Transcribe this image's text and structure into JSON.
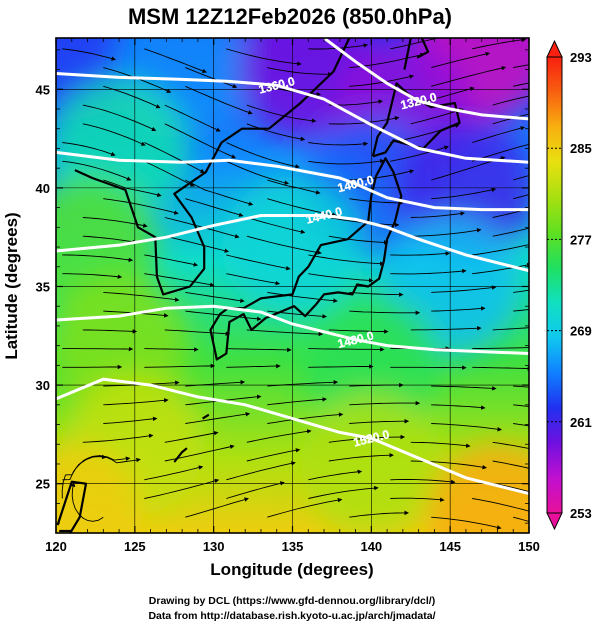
{
  "chart_data": {
    "type": "heatmap",
    "title": "MSM 12Z12Feb2026 (850.0hPa)",
    "xlabel": "Longitude (degrees)",
    "ylabel": "Latitude  (degrees)",
    "xlim": [
      120,
      150
    ],
    "ylim": [
      22.5,
      47.6
    ],
    "x_ticks": [
      120,
      125,
      130,
      135,
      140,
      145,
      150
    ],
    "y_ticks": [
      25,
      30,
      35,
      40,
      45
    ],
    "grid": true,
    "grid_x": [
      125,
      130,
      135,
      140,
      145
    ],
    "grid_y": [
      25,
      30,
      35,
      40,
      45
    ],
    "colorbar": {
      "ticks": [
        293,
        285,
        277,
        269,
        261,
        253
      ],
      "min": 253,
      "max": 293,
      "stops": [
        "#e8109a",
        "#c010d0",
        "#7010e0",
        "#2030f0",
        "#1080ff",
        "#10c8f0",
        "#10e0c0",
        "#20e060",
        "#60e020",
        "#a8e010",
        "#e8e010",
        "#f8b010",
        "#f86010",
        "#f82010"
      ],
      "placement": "right"
    },
    "temperature_samples_K": [
      {
        "lon": 121,
        "lat": 47,
        "value": 263
      },
      {
        "lon": 128,
        "lat": 46,
        "value": 266
      },
      {
        "lon": 136,
        "lat": 46,
        "value": 259
      },
      {
        "lon": 147,
        "lat": 47,
        "value": 255
      },
      {
        "lon": 142,
        "lat": 44,
        "value": 258
      },
      {
        "lon": 124,
        "lat": 42,
        "value": 272
      },
      {
        "lon": 140,
        "lat": 40,
        "value": 264
      },
      {
        "lon": 146,
        "lat": 40,
        "value": 261
      },
      {
        "lon": 122,
        "lat": 37,
        "value": 277
      },
      {
        "lon": 135,
        "lat": 37,
        "value": 270
      },
      {
        "lon": 145,
        "lat": 35,
        "value": 268
      },
      {
        "lon": 124,
        "lat": 32,
        "value": 279
      },
      {
        "lon": 140,
        "lat": 31,
        "value": 275
      },
      {
        "lon": 125,
        "lat": 27,
        "value": 282
      },
      {
        "lon": 140,
        "lat": 26,
        "value": 281
      },
      {
        "lon": 121,
        "lat": 23.5,
        "value": 285
      },
      {
        "lon": 148,
        "lat": 23.5,
        "value": 287
      }
    ],
    "contours": [
      {
        "label": "1320.0",
        "label_lon": 143,
        "label_lat": 44.4,
        "points": [
          [
            137,
            47.6
          ],
          [
            139,
            46.4
          ],
          [
            141,
            45.3
          ],
          [
            143,
            44.4
          ],
          [
            145,
            44.0
          ],
          [
            147,
            43.7
          ],
          [
            150,
            43.5
          ]
        ]
      },
      {
        "label": "1360.0",
        "label_lon": 134,
        "label_lat": 45.2,
        "points": [
          [
            120,
            45.8
          ],
          [
            124,
            45.6
          ],
          [
            128,
            45.5
          ],
          [
            131,
            45.4
          ],
          [
            134,
            45.2
          ],
          [
            137,
            44.5
          ],
          [
            140,
            43.2
          ],
          [
            143,
            42.0
          ],
          [
            146,
            41.5
          ],
          [
            150,
            41.3
          ]
        ]
      },
      {
        "label": "1400.0",
        "label_lon": 139,
        "label_lat": 40.2,
        "points": [
          [
            120,
            41.8
          ],
          [
            124,
            41.4
          ],
          [
            128,
            41.3
          ],
          [
            131,
            41.4
          ],
          [
            134,
            41.1
          ],
          [
            136,
            40.8
          ],
          [
            138,
            40.5
          ],
          [
            139,
            40.2
          ],
          [
            141,
            39.5
          ],
          [
            144,
            39.0
          ],
          [
            147,
            38.9
          ],
          [
            150,
            38.9
          ]
        ]
      },
      {
        "label": "1440.0",
        "label_lon": 137,
        "label_lat": 38.6,
        "points": [
          [
            120,
            36.8
          ],
          [
            124,
            37.1
          ],
          [
            127,
            37.5
          ],
          [
            130,
            38.1
          ],
          [
            133,
            38.6
          ],
          [
            137,
            38.6
          ],
          [
            139,
            38.4
          ],
          [
            141,
            38.0
          ],
          [
            143,
            37.4
          ],
          [
            146,
            36.6
          ],
          [
            150,
            35.8
          ]
        ]
      },
      {
        "label": "1480.0",
        "label_lon": 139,
        "label_lat": 32.3,
        "points": [
          [
            120,
            33.3
          ],
          [
            124,
            33.5
          ],
          [
            127,
            33.9
          ],
          [
            130,
            34.0
          ],
          [
            133,
            33.7
          ],
          [
            135,
            33.1
          ],
          [
            137,
            32.7
          ],
          [
            139,
            32.3
          ],
          [
            141,
            32.0
          ],
          [
            144,
            31.8
          ],
          [
            147,
            31.7
          ],
          [
            150,
            31.6
          ]
        ]
      },
      {
        "label": "1520.0",
        "label_lon": 140,
        "label_lat": 27.3,
        "points": [
          [
            120,
            29.3
          ],
          [
            123,
            30.3
          ],
          [
            126,
            30.0
          ],
          [
            129,
            29.4
          ],
          [
            132,
            29.0
          ],
          [
            135,
            28.3
          ],
          [
            138,
            27.6
          ],
          [
            140,
            27.3
          ],
          [
            143,
            26.3
          ],
          [
            146,
            25.3
          ],
          [
            150,
            24.5
          ]
        ]
      }
    ],
    "wind_streamlines": "westerly flow, strongest in the central band, weak anticyclonic swirl near 122E 24N"
  },
  "credits": {
    "line1": "Drawing by DCL (https://www.gfd-dennou.org/library/dcl/)",
    "line2": "Data from http://database.rish.kyoto-u.ac.jp/arch/jmadata/"
  }
}
